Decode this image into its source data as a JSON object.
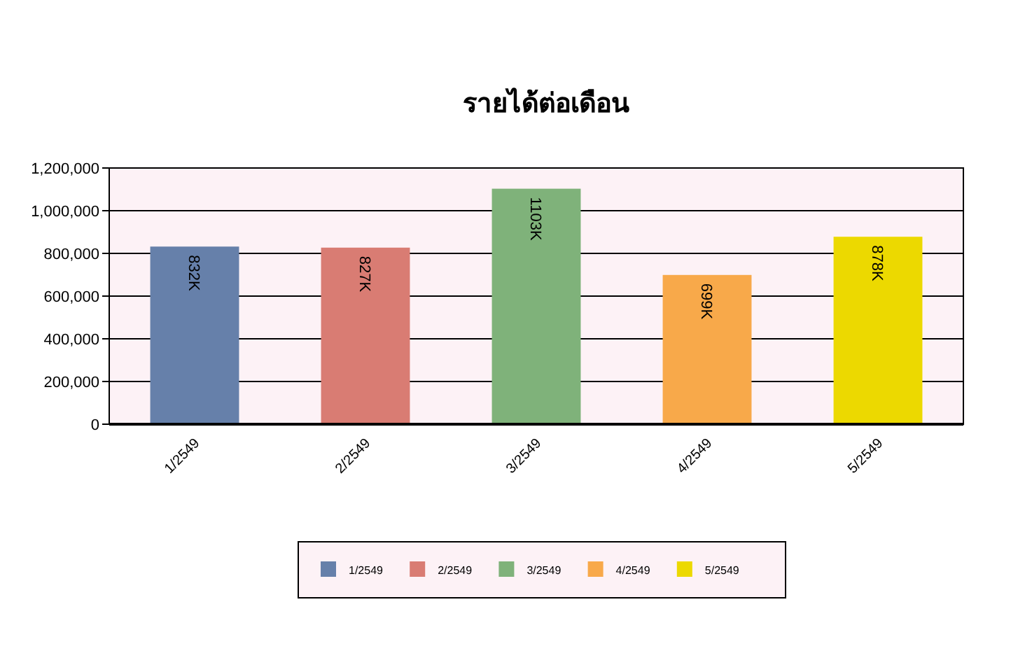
{
  "chart_data": {
    "type": "bar",
    "title": "รายได้ต่อเดือน",
    "categories": [
      "1/2549",
      "2/2549",
      "3/2549",
      "4/2549",
      "5/2549"
    ],
    "series": [
      {
        "name": "1/2549",
        "color": "#6680aa",
        "values": [
          832000,
          null,
          null,
          null,
          null
        ],
        "value_labels": [
          "832K",
          null,
          null,
          null,
          null
        ]
      },
      {
        "name": "2/2549",
        "color": "#d97c73",
        "values": [
          null,
          827000,
          null,
          null,
          null
        ],
        "value_labels": [
          null,
          "827K",
          null,
          null,
          null
        ]
      },
      {
        "name": "3/2549",
        "color": "#7fb27a",
        "values": [
          null,
          null,
          1103000,
          null,
          null
        ],
        "value_labels": [
          null,
          null,
          "1103K",
          null,
          null
        ]
      },
      {
        "name": "4/2549",
        "color": "#f8a94a",
        "values": [
          null,
          null,
          null,
          699000,
          null
        ],
        "value_labels": [
          null,
          null,
          null,
          "699K",
          null
        ]
      },
      {
        "name": "5/2549",
        "color": "#ecd900",
        "values": [
          null,
          null,
          null,
          null,
          878000
        ],
        "value_labels": [
          null,
          null,
          null,
          null,
          "878K"
        ]
      }
    ],
    "ylim": [
      0,
      1200000
    ],
    "yticks": [
      0,
      {
        "value": 200000,
        "label": "200,000"
      },
      {
        "value": 400000,
        "label": "400,000"
      },
      {
        "value": 600000,
        "label": "600,000"
      },
      {
        "value": 800000,
        "label": "800,000"
      },
      {
        "value": 1000000,
        "label": "1,000,000"
      },
      {
        "value": 1200000,
        "label": "1,200,000"
      }
    ],
    "grid": "y",
    "legend": "bottom"
  }
}
